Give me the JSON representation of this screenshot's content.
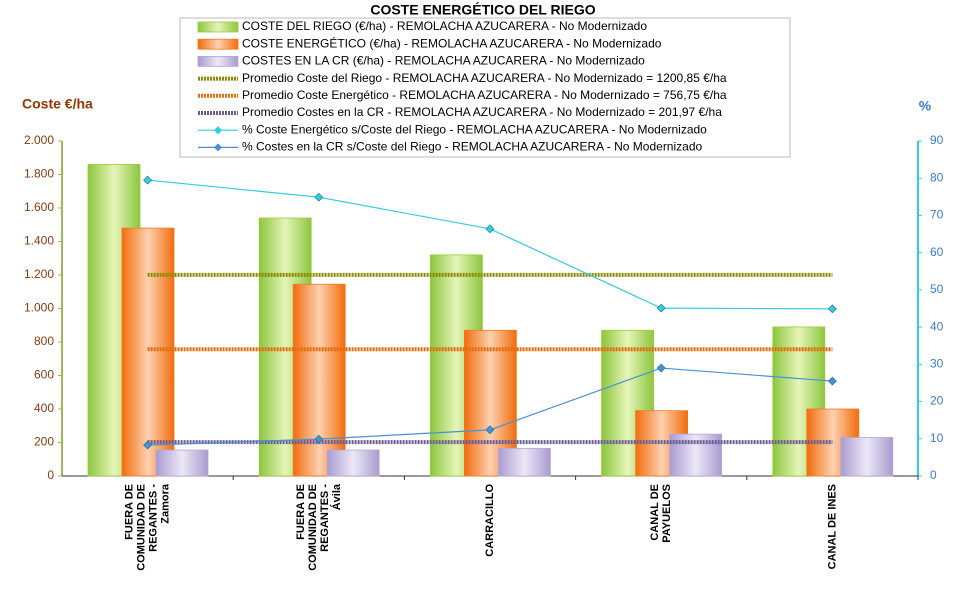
{
  "chart_data": {
    "type": "bar",
    "title": "COSTE ENERGÉTICO DEL RIEGO",
    "ylabel": "Coste €/ha",
    "y2label": "%",
    "categories": [
      "FUERA DE\nCOMUNIDAD DE\nREGANTES -\nZamora",
      "FUERA DE\nCOMUNIDAD DE\nREGANTES -\nÁvila",
      "CARRACILLO",
      "CANAL DE\nPAYUELOS",
      "CANAL DE INES"
    ],
    "ylim": [
      0,
      2000
    ],
    "yticks": [
      {
        "value": 0,
        "label": "0"
      },
      {
        "value": 200,
        "label": "200"
      },
      {
        "value": 400,
        "label": "400"
      },
      {
        "value": 600,
        "label": "600"
      },
      {
        "value": 800,
        "label": "800"
      },
      {
        "value": 1000,
        "label": "1.000"
      },
      {
        "value": 1200,
        "label": "1.200"
      },
      {
        "value": 1400,
        "label": "1.400"
      },
      {
        "value": 1600,
        "label": "1.600"
      },
      {
        "value": 1800,
        "label": "1.800"
      },
      {
        "value": 2000,
        "label": "2.000"
      }
    ],
    "y2lim": [
      0,
      90
    ],
    "y2ticks": [
      0,
      10,
      20,
      30,
      40,
      50,
      60,
      70,
      80,
      90
    ],
    "series": [
      {
        "name": "COSTE DEL RIEGO (€/ha) - REMOLACHA AZUCARERA - No Modernizado",
        "type": "bar",
        "color": "#9acd32",
        "values": [
          1860,
          1540,
          1320,
          870,
          890
        ]
      },
      {
        "name": "COSTE ENERGÉTICO (€/ha) - REMOLACHA AZUCARERA - No Modernizado",
        "type": "bar",
        "color": "#f47920",
        "values": [
          1480,
          1145,
          870,
          390,
          400
        ]
      },
      {
        "name": "COSTES EN LA CR (€/ha) - REMOLACHA AZUCARERA - No Modernizado",
        "type": "bar",
        "color": "#b4a7d6",
        "values": [
          155,
          155,
          165,
          250,
          230
        ]
      },
      {
        "name": "Promedio Coste del Riego - REMOLACHA AZUCARERA - No Modernizado = 1200,85 €/ha",
        "type": "average",
        "color": "#8b8b00",
        "value": 1200.85
      },
      {
        "name": "Promedio Coste Energético - REMOLACHA AZUCARERA - No Modernizado = 756,75 €/ha",
        "type": "average",
        "color": "#e46c0a",
        "value": 756.75
      },
      {
        "name": "Promedio Costes en la CR - REMOLACHA AZUCARERA - No Modernizado = 201,97 €/ha",
        "type": "average",
        "color": "#6b5b95",
        "value": 201.97
      },
      {
        "name": "% Coste Energético s/Coste del Riego - REMOLACHA AZUCARERA - No Modernizado",
        "type": "line",
        "axis": "y2",
        "color": "#33ccdd",
        "values": [
          79.5,
          74.9,
          66.4,
          45.1,
          44.9
        ]
      },
      {
        "name": "% Costes en la CR s/Coste del Riego - REMOLACHA AZUCARERA - No Modernizado",
        "type": "line",
        "axis": "y2",
        "color": "#4a90d9",
        "values": [
          8.3,
          9.9,
          12.4,
          29,
          25.5
        ]
      }
    ]
  }
}
